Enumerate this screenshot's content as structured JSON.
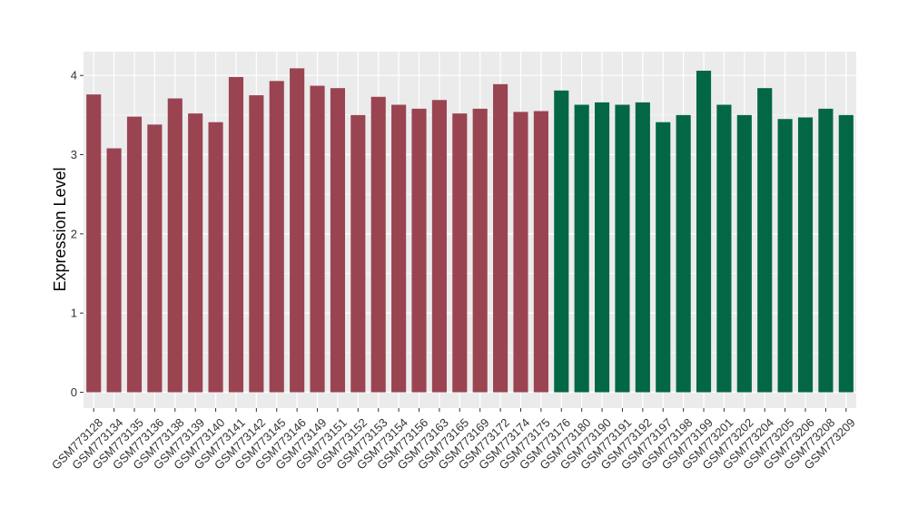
{
  "chart_data": {
    "type": "bar",
    "title": "",
    "xlabel": "",
    "ylabel": "Expression Level",
    "ylim": [
      -0.2,
      4.3
    ],
    "yticks": [
      0,
      1,
      2,
      3,
      4
    ],
    "grid": true,
    "panel_background": "#ebebeb",
    "grid_color": "#ffffff",
    "categories": [
      "GSM773128",
      "GSM773134",
      "GSM773135",
      "GSM773136",
      "GSM773138",
      "GSM773139",
      "GSM773140",
      "GSM773141",
      "GSM773142",
      "GSM773145",
      "GSM773146",
      "GSM773149",
      "GSM773151",
      "GSM773152",
      "GSM773153",
      "GSM773154",
      "GSM773156",
      "GSM773163",
      "GSM773165",
      "GSM773169",
      "GSM773172",
      "GSM773174",
      "GSM773175",
      "GSM773176",
      "GSM773180",
      "GSM773190",
      "GSM773191",
      "GSM773192",
      "GSM773197",
      "GSM773198",
      "GSM773199",
      "GSM773201",
      "GSM773202",
      "GSM773204",
      "GSM773205",
      "GSM773206",
      "GSM773208",
      "GSM773209"
    ],
    "values": [
      3.76,
      3.08,
      3.48,
      3.38,
      3.71,
      3.52,
      3.41,
      3.98,
      3.75,
      3.93,
      4.09,
      3.87,
      3.84,
      3.5,
      3.73,
      3.63,
      3.58,
      3.69,
      3.52,
      3.58,
      3.89,
      3.54,
      3.55,
      3.81,
      3.63,
      3.66,
      3.63,
      3.66,
      3.41,
      3.5,
      4.06,
      3.63,
      3.5,
      3.84,
      3.45,
      3.47,
      3.58,
      3.5
    ],
    "group_colors": [
      "#9a4452",
      "#9a4452",
      "#9a4452",
      "#9a4452",
      "#9a4452",
      "#9a4452",
      "#9a4452",
      "#9a4452",
      "#9a4452",
      "#9a4452",
      "#9a4452",
      "#9a4452",
      "#9a4452",
      "#9a4452",
      "#9a4452",
      "#9a4452",
      "#9a4452",
      "#9a4452",
      "#9a4452",
      "#9a4452",
      "#9a4452",
      "#9a4452",
      "#9a4452",
      "#036745",
      "#036745",
      "#036745",
      "#036745",
      "#036745",
      "#036745",
      "#036745",
      "#036745",
      "#036745",
      "#036745",
      "#036745",
      "#036745",
      "#036745",
      "#036745",
      "#036745"
    ]
  }
}
